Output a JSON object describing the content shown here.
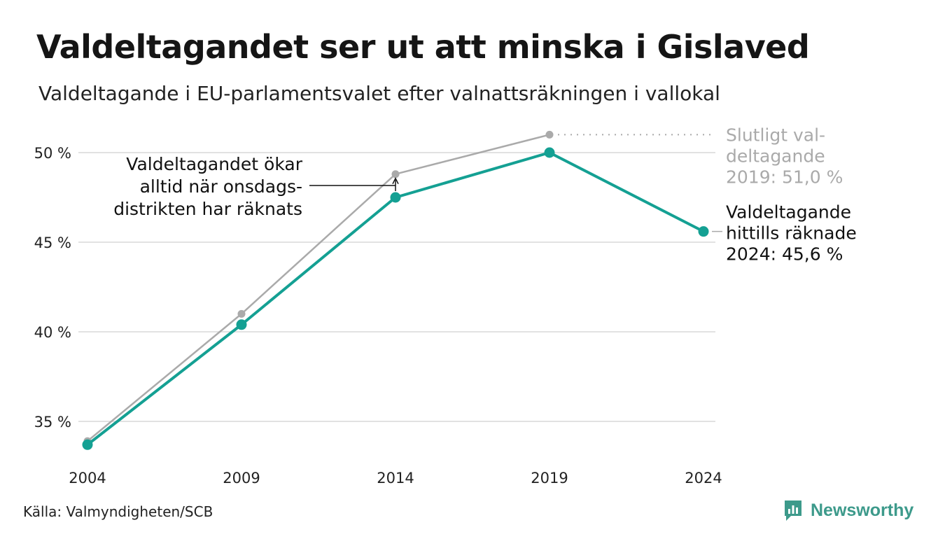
{
  "header": {
    "title": "Valdeltagandet ser ut att minska i Gislaved",
    "subtitle": "Valdeltagande i EU-parlamentsvalet efter valnattsräkningen i vallokal"
  },
  "footer": {
    "source": "Källa: Valmyndigheten/SCB",
    "brand": "Newsworthy"
  },
  "colors": {
    "current": "#14a093",
    "final": "#aaaaaa",
    "grid": "#e2e2e2"
  },
  "chart_data": {
    "type": "line",
    "x": [
      2004,
      2009,
      2014,
      2019,
      2024
    ],
    "series": [
      {
        "key": "final",
        "values": [
          33.9,
          41.0,
          48.8,
          51.0,
          null
        ]
      },
      {
        "key": "current",
        "values": [
          33.7,
          40.4,
          47.5,
          50.0,
          45.6
        ]
      }
    ],
    "ylim": [
      33,
      52
    ],
    "yticks": [
      35,
      40,
      45,
      50
    ],
    "ytick_labels": [
      "35 %",
      "40 %",
      "45 %",
      "50 %"
    ],
    "xtick_labels": [
      "2004",
      "2009",
      "2014",
      "2019",
      "2024"
    ],
    "grid": true,
    "annotations": {
      "final_label": [
        "Slutligt val-",
        "deltagande",
        "2019: 51,0 %"
      ],
      "current_label": [
        "Valdeltagande",
        "hittills räknade",
        "2024: 45,6 %"
      ],
      "note": [
        "Valdeltagandet ökar",
        "alltid när onsdags-",
        "distrikten har räknats"
      ]
    }
  }
}
